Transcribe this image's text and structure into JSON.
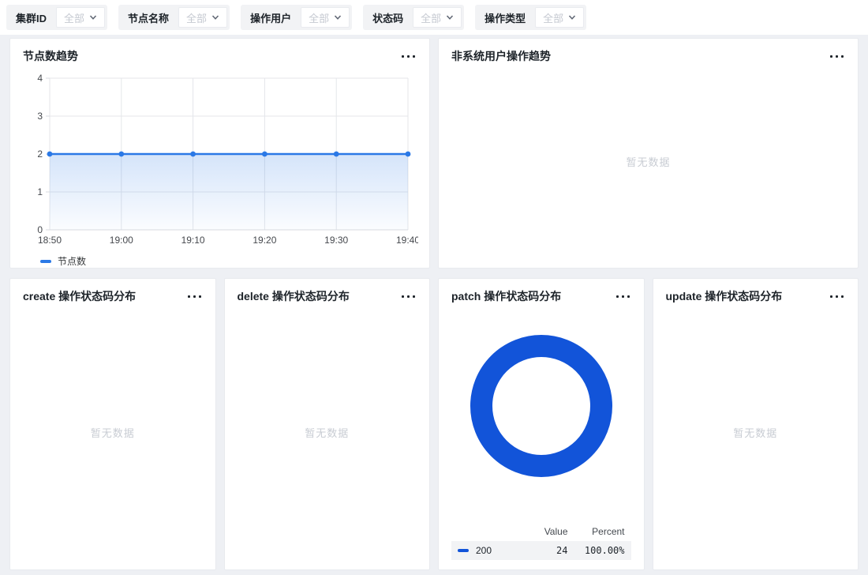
{
  "filters": {
    "items": [
      {
        "label": "集群ID",
        "value": "全部"
      },
      {
        "label": "节点名称",
        "value": "全部"
      },
      {
        "label": "操作用户",
        "value": "全部"
      },
      {
        "label": "状态码",
        "value": "全部"
      },
      {
        "label": "操作类型",
        "value": "全部"
      }
    ]
  },
  "panels": {
    "node_trend": {
      "title": "节点数趋势"
    },
    "non_system": {
      "title": "非系统用户操作趋势",
      "empty": "暂无数据"
    },
    "create_dist": {
      "title": "create 操作状态码分布",
      "empty": "暂无数据"
    },
    "delete_dist": {
      "title": "delete 操作状态码分布",
      "empty": "暂无数据"
    },
    "patch_dist": {
      "title": "patch 操作状态码分布"
    },
    "update_dist": {
      "title": "update 操作状态码分布",
      "empty": "暂无数据"
    }
  },
  "chart_data": [
    {
      "id": "node_trend",
      "type": "line",
      "title": "节点数趋势",
      "x": [
        "18:50",
        "19:00",
        "19:10",
        "19:20",
        "19:30",
        "19:40"
      ],
      "series": [
        {
          "name": "节点数",
          "values": [
            2,
            2,
            2,
            2,
            2,
            2
          ]
        }
      ],
      "ylim": [
        0,
        4
      ],
      "yticks": [
        0,
        1,
        2,
        3,
        4
      ],
      "grid": true,
      "area": true,
      "legend_position": "bottom-left",
      "line_color": "#2b79e6",
      "grid_color": "#e4e6ea",
      "axis_color": "#d9dbe0",
      "axis_label_color": "#45484d"
    },
    {
      "id": "patch_status",
      "type": "pie",
      "title": "patch 操作状态码分布",
      "donut": true,
      "slices": [
        {
          "label": "200",
          "value": 24,
          "percent": "100.00%",
          "color": "#1254d9"
        }
      ],
      "table_headers": {
        "value": "Value",
        "percent": "Percent"
      },
      "legend_position": "bottom"
    }
  ],
  "colors": {
    "accent_blue": "#2b79e6",
    "donut_blue": "#1254d9",
    "page_bg": "#eef0f4",
    "panel_bg": "#ffffff",
    "filter_bg": "#f2f3f5",
    "empty_text": "#c8ccd3"
  }
}
